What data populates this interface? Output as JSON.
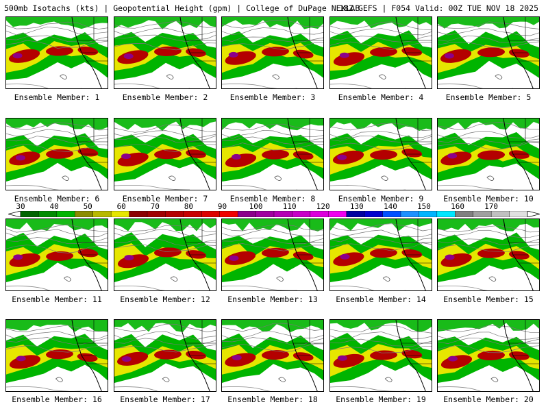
{
  "header": {
    "left": "500mb Isotachs (kts) | Geopotential Height (gpm) | College of DuPage NEXLAB",
    "right": "18Z GEFS | F054 Valid: 00Z TUE NOV 18 2025"
  },
  "chart_data": {
    "type": "heatmap",
    "title": "500mb Isotachs (kts) | Geopotential Height (gpm) | College of DuPage NEXLAB",
    "subtitle": "18Z GEFS | F054 Valid: 00Z TUE NOV 18 2025",
    "variable": "500mb Isotachs (kts)",
    "overlay": "Geopotential Height (gpm)",
    "colorbar": {
      "labels": [
        "30",
        "40",
        "50",
        "60",
        "70",
        "80",
        "90",
        "100",
        "110",
        "120",
        "130",
        "140",
        "150",
        "160",
        "170"
      ],
      "min": 30,
      "max": 170,
      "step": 5,
      "colors": [
        "#006400",
        "#008c00",
        "#00b400",
        "#8b8b00",
        "#b8b800",
        "#e6e600",
        "#8b0000",
        "#a00000",
        "#b40000",
        "#c80000",
        "#dc0000",
        "#f00000",
        "#8b008b",
        "#a000a0",
        "#b400b4",
        "#c800c8",
        "#dc00dc",
        "#f000f0",
        "#0000a0",
        "#0000cd",
        "#0050ff",
        "#1e90ff",
        "#00b4ff",
        "#00e6ff",
        "#808080",
        "#a0a0a0",
        "#c0c0c0",
        "#e0e0e0"
      ]
    },
    "panels": [
      {
        "member": 1,
        "caption": "Ensemble Member: 1"
      },
      {
        "member": 2,
        "caption": "Ensemble Member: 2"
      },
      {
        "member": 3,
        "caption": "Ensemble Member: 3"
      },
      {
        "member": 4,
        "caption": "Ensemble Member: 4"
      },
      {
        "member": 5,
        "caption": "Ensemble Member: 5"
      },
      {
        "member": 6,
        "caption": "Ensemble Member: 6"
      },
      {
        "member": 7,
        "caption": "Ensemble Member: 7"
      },
      {
        "member": 8,
        "caption": "Ensemble Member: 8"
      },
      {
        "member": 9,
        "caption": "Ensemble Member: 9"
      },
      {
        "member": 10,
        "caption": "Ensemble Member: 10"
      },
      {
        "member": 11,
        "caption": "Ensemble Member: 11"
      },
      {
        "member": 12,
        "caption": "Ensemble Member: 12"
      },
      {
        "member": 13,
        "caption": "Ensemble Member: 13"
      },
      {
        "member": 14,
        "caption": "Ensemble Member: 14"
      },
      {
        "member": 15,
        "caption": "Ensemble Member: 15"
      },
      {
        "member": 16,
        "caption": "Ensemble Member: 16"
      },
      {
        "member": 17,
        "caption": "Ensemble Member: 17"
      },
      {
        "member": 18,
        "caption": "Ensemble Member: 18"
      },
      {
        "member": 19,
        "caption": "Ensemble Member: 19"
      },
      {
        "member": 20,
        "caption": "Ensemble Member: 20"
      }
    ]
  }
}
